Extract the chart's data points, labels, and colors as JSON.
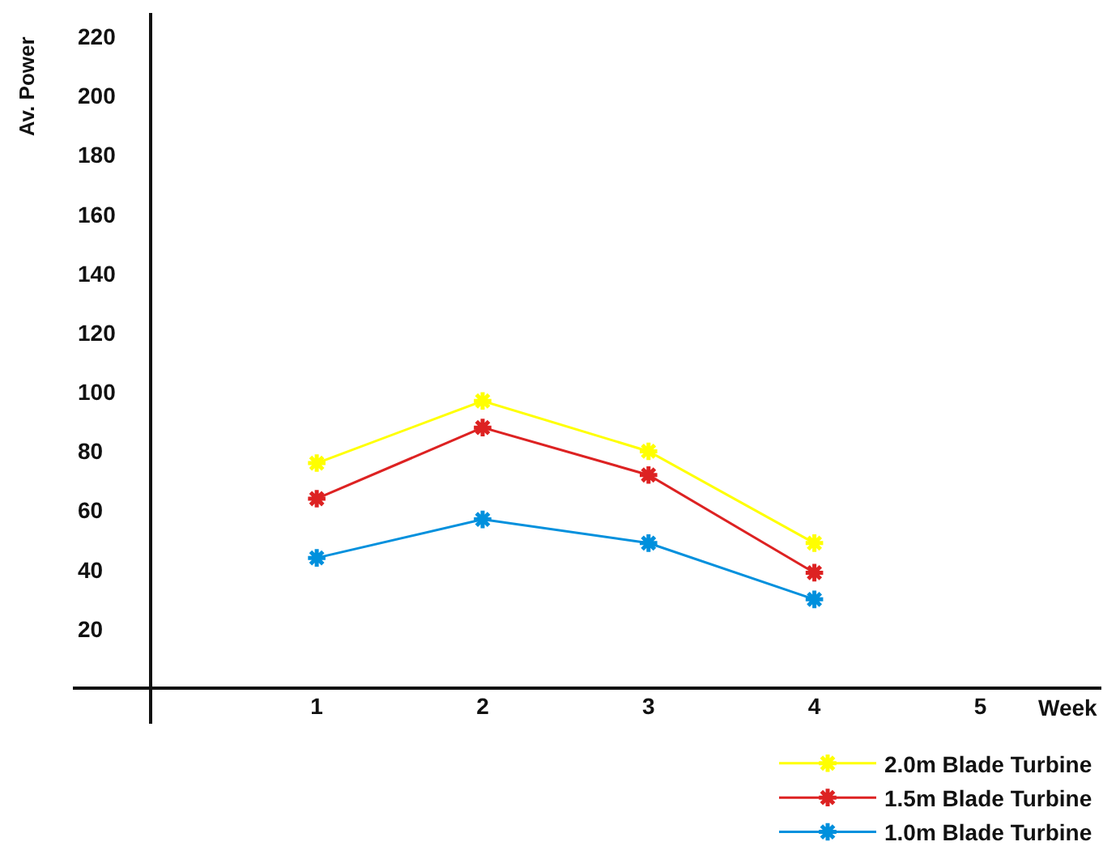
{
  "chart_data": {
    "type": "line",
    "xlabel": "Week",
    "ylabel": "Av. Power",
    "x": [
      1,
      2,
      3,
      4
    ],
    "series": [
      {
        "name": "2.0m Blade Turbine",
        "color": "#ffff00",
        "values": [
          76,
          97,
          80,
          49
        ]
      },
      {
        "name": "1.5m Blade Turbine",
        "color": "#dd2222",
        "values": [
          64,
          88,
          72,
          39
        ]
      },
      {
        "name": "1.0m Blade Turbine",
        "color": "#0090dd",
        "values": [
          44,
          57,
          49,
          30
        ]
      }
    ],
    "xlim": [
      -0.47,
      5.73
    ],
    "xticks": [
      1,
      2,
      3,
      4,
      5
    ],
    "ylim": [
      -12,
      228
    ],
    "yticks": [
      20,
      40,
      60,
      80,
      100,
      120,
      140,
      160,
      180,
      200,
      220
    ],
    "legend": "bottom right",
    "marker": "cross",
    "line_style": "solid"
  }
}
